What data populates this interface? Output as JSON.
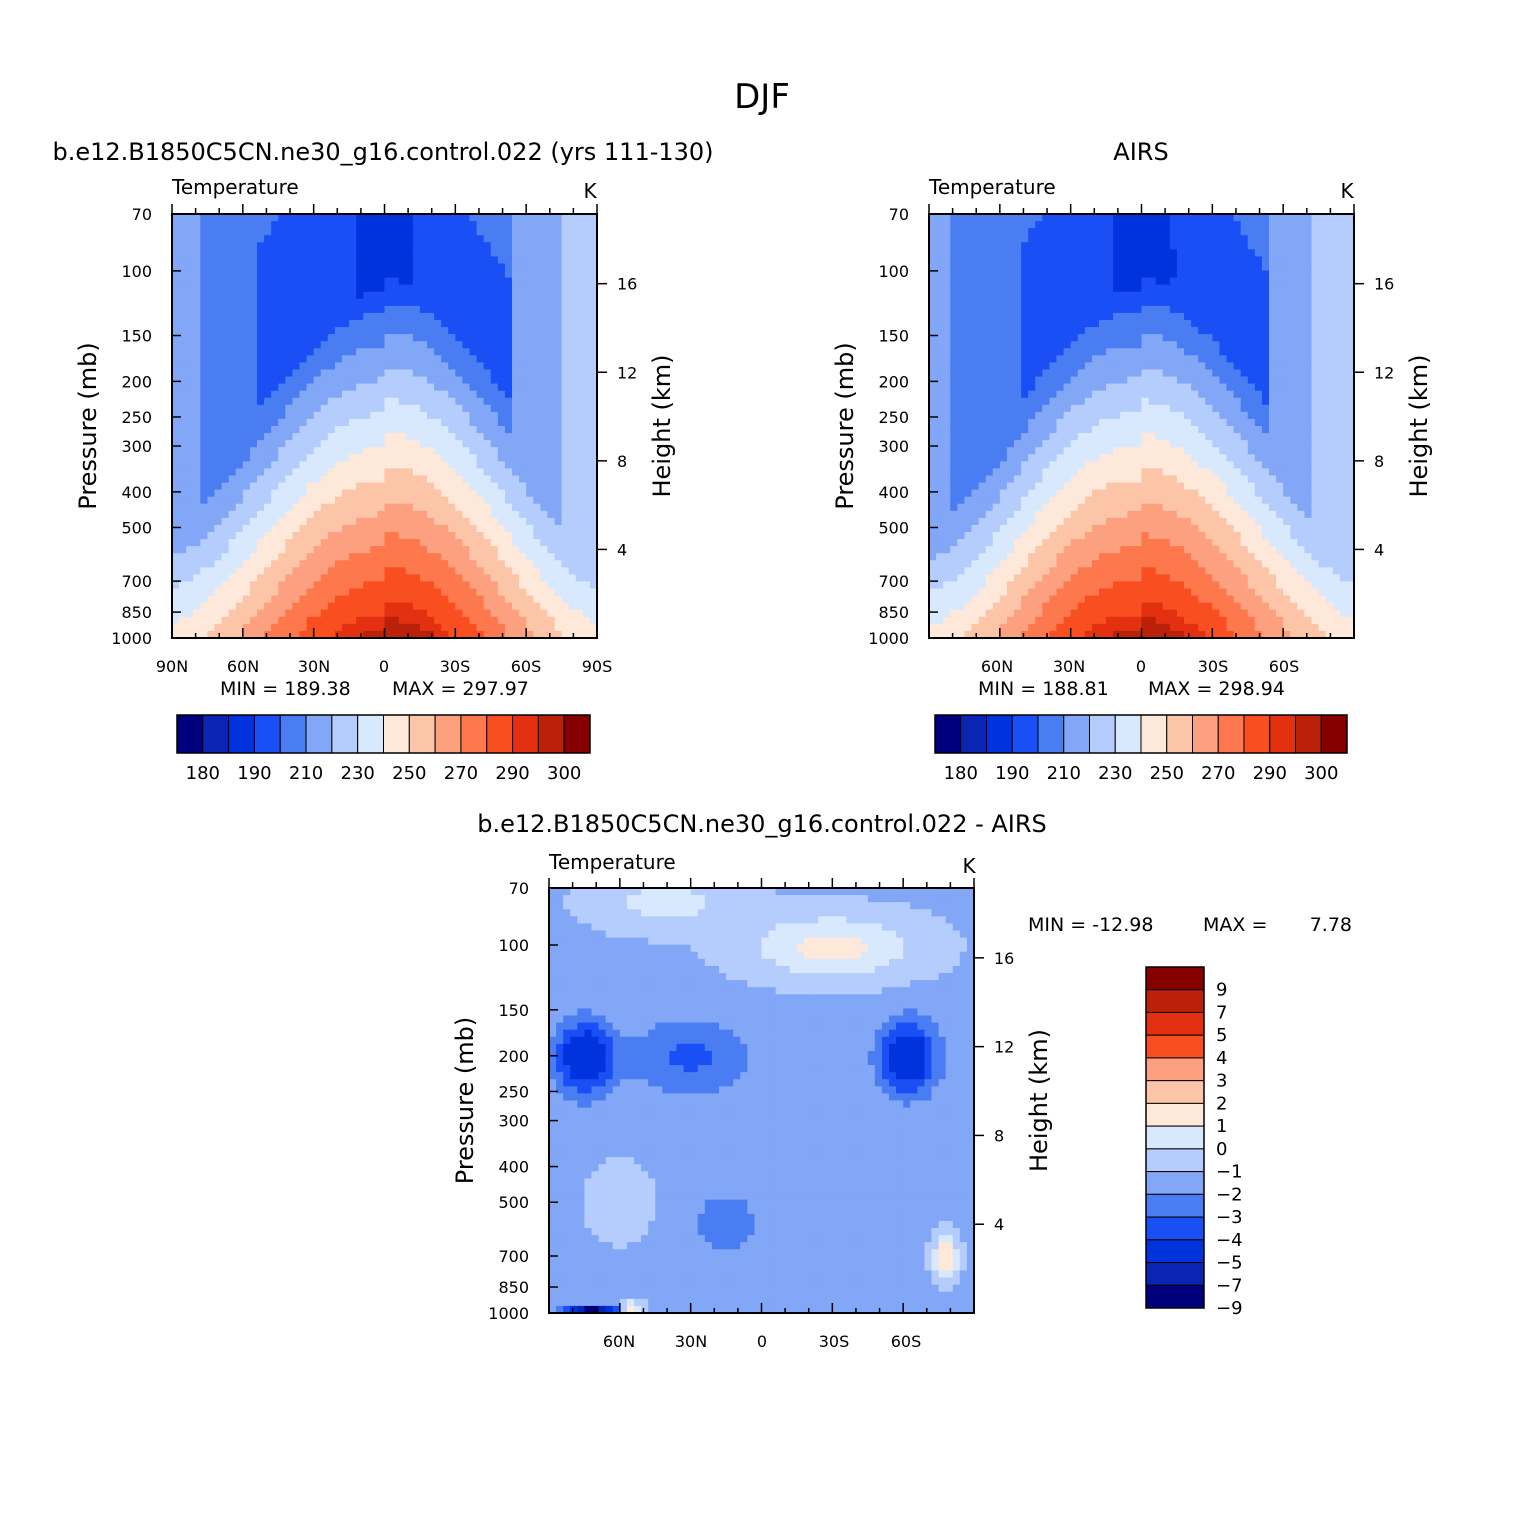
{
  "figure_title": "DJF",
  "chart_data": [
    {
      "type": "heatmap",
      "title": "b.e12.B1850C5CN.ne30_g16.control.022 (yrs 111-130)",
      "subtitle_left": "Temperature",
      "units": "K",
      "xlabel": "",
      "ylabel": "Pressure (mb)",
      "ylabel_right": "Height (km)",
      "x_ticks": [
        "90N",
        "60N",
        "30N",
        "0",
        "30S",
        "60S",
        "90S"
      ],
      "y_ticks": [
        70,
        100,
        150,
        200,
        250,
        300,
        400,
        500,
        700,
        850,
        1000
      ],
      "y_right_ticks": [
        16,
        12,
        8,
        4
      ],
      "y_log_scale": true,
      "min_text": "MIN = 189.38",
      "max_text": "MAX = 297.97",
      "min": 189.38,
      "max": 297.97,
      "colorbar_orientation": "horizontal",
      "colorbar_labels": [
        "180",
        "190",
        "210",
        "230",
        "250",
        "270",
        "290",
        "300"
      ]
    },
    {
      "type": "heatmap",
      "title": "AIRS",
      "subtitle_left": "Temperature",
      "units": "K",
      "xlabel": "",
      "ylabel": "Pressure (mb)",
      "ylabel_right": "Height (km)",
      "x_ticks": [
        "60N",
        "30N",
        "0",
        "30S",
        "60S"
      ],
      "y_ticks": [
        70,
        100,
        150,
        200,
        250,
        300,
        400,
        500,
        700,
        850,
        1000
      ],
      "y_right_ticks": [
        16,
        12,
        8,
        4
      ],
      "y_log_scale": true,
      "min_text": "MIN = 188.81",
      "max_text": "MAX = 298.94",
      "min": 188.81,
      "max": 298.94,
      "colorbar_orientation": "horizontal",
      "colorbar_labels": [
        "180",
        "190",
        "210",
        "230",
        "250",
        "270",
        "290",
        "300"
      ]
    },
    {
      "type": "heatmap",
      "title": "b.e12.B1850C5CN.ne30_g16.control.022 - AIRS",
      "subtitle_left": "Temperature",
      "units": "K",
      "xlabel": "",
      "ylabel": "Pressure (mb)",
      "ylabel_right": "Height (km)",
      "x_ticks": [
        "60N",
        "30N",
        "0",
        "30S",
        "60S"
      ],
      "y_ticks": [
        70,
        100,
        150,
        200,
        250,
        300,
        400,
        500,
        700,
        850,
        1000
      ],
      "y_right_ticks": [
        16,
        12,
        8,
        4
      ],
      "y_log_scale": true,
      "min_text": "MIN = -12.98",
      "max_text": "MAX =",
      "max_value_text": "7.78",
      "min": -12.98,
      "max": 7.78,
      "colorbar_orientation": "vertical",
      "colorbar_labels": [
        "9",
        "7",
        "5",
        "4",
        "3",
        "2",
        "1",
        "0",
        "-1",
        "-2",
        "-3",
        "-4",
        "-5",
        "-7",
        "-9"
      ]
    }
  ],
  "colors": {
    "abs_palette": [
      "#00007f",
      "#0a25b3",
      "#0033dd",
      "#1a4ff5",
      "#4a7df2",
      "#83a7f7",
      "#b5cdfd",
      "#d8e8fd",
      "#fde8da",
      "#fdc5a8",
      "#fca080",
      "#fd784d",
      "#f94e20",
      "#e23010",
      "#bb2008",
      "#860000"
    ],
    "diff_palette": [
      "#00007f",
      "#0a25b3",
      "#0033dd",
      "#1a4ff5",
      "#4a7df2",
      "#83a7f7",
      "#b5cdfd",
      "#d8e8fd",
      "#fde8da",
      "#fdc5a8",
      "#fca080",
      "#f94e20",
      "#e23010",
      "#bb2008",
      "#860000"
    ]
  }
}
